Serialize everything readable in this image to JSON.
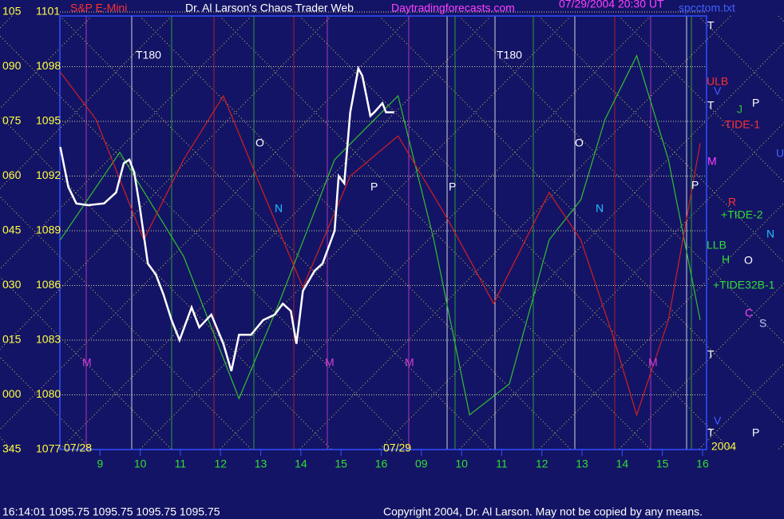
{
  "chart_data": {
    "type": "line",
    "header": [
      {
        "text": "S&P E-Mini",
        "color": "#ff3030"
      },
      {
        "text": "Dr. Al Larson's Chaos Trader Web",
        "color": "#ffffff"
      },
      {
        "text": "Daytradingforecasts.com",
        "color": "#ff40ff"
      },
      {
        "text": "07/29/2004 20:30 UT",
        "color": "#ff40ff"
      },
      {
        "text": "spcctom.txt",
        "color": "#4060ff"
      }
    ],
    "xlim": [
      8,
      24.1
    ],
    "xticks": [
      9,
      10,
      11,
      12,
      13,
      14,
      15,
      16,
      {
        "value": 17,
        "label": "09"
      },
      {
        "value": 18,
        "label": "10"
      },
      {
        "value": 19,
        "label": "11"
      },
      {
        "value": 20,
        "label": "12"
      },
      {
        "value": 21,
        "label": "13"
      },
      {
        "value": 22,
        "label": "14"
      },
      {
        "value": 23,
        "label": "15"
      },
      {
        "value": 24,
        "label": "16"
      }
    ],
    "dates": [
      "07/28",
      "07/29",
      "2004"
    ],
    "ylim": [
      1077,
      1101
    ],
    "yticks": [
      1101,
      1098,
      1095,
      1092,
      1089,
      1086,
      1083,
      1080,
      1077
    ],
    "y2lim": [
      -15,
      105
    ],
    "y2ticks": [
      105,
      {
        "value": 90,
        "label": "090"
      },
      {
        "value": 75,
        "label": "075"
      },
      {
        "value": 60,
        "label": "060"
      },
      {
        "value": 45,
        "label": "045"
      },
      {
        "value": 30,
        "label": "030"
      },
      {
        "value": 15,
        "label": "015"
      },
      {
        "value": 0,
        "label": "000"
      },
      {
        "value": -15,
        "label": "345"
      }
    ],
    "grid": true,
    "series": [
      {
        "name": "+TIDE-2",
        "color": "#30c030",
        "x": [
          8.01,
          9.49,
          11.08,
          12.46,
          13.45,
          14.84,
          16.42,
          17.31,
          18.2,
          19.19,
          20.18,
          20.97,
          21.57,
          22.36,
          23.15,
          23.94
        ],
        "values": [
          1088.5,
          1093.3,
          1087.6,
          1079.8,
          1085.0,
          1092.9,
          1096.4,
          1088.5,
          1078.9,
          1080.6,
          1088.5,
          1090.7,
          1095.1,
          1098.6,
          1092.9,
          1084.1
        ]
      },
      {
        "name": "-TIDE-1",
        "color": "#d02020",
        "x": [
          8.01,
          8.9,
          10.09,
          11.08,
          12.07,
          13.06,
          14.05,
          15.23,
          16.42,
          17.61,
          18.8,
          20.18,
          20.97,
          21.76,
          22.36,
          23.15,
          23.94
        ],
        "values": [
          1097.7,
          1095.1,
          1088.5,
          1092.9,
          1096.4,
          1091.1,
          1085.9,
          1092.0,
          1094.2,
          1089.8,
          1085.0,
          1091.1,
          1088.5,
          1083.3,
          1078.9,
          1084.1,
          1093.8
        ]
      },
      {
        "name": "price",
        "color": "#ffffff",
        "x": [
          8.01,
          8.21,
          8.41,
          8.7,
          9.1,
          9.4,
          9.59,
          9.73,
          9.85,
          9.99,
          10.19,
          10.39,
          10.58,
          10.78,
          10.98,
          11.28,
          11.47,
          11.77,
          12.07,
          12.27,
          12.46,
          12.76,
          13.06,
          13.35,
          13.55,
          13.75,
          13.89,
          14.05,
          14.34,
          14.54,
          14.84,
          14.94,
          15.08,
          15.23,
          15.43,
          15.53,
          15.63,
          15.73,
          15.83,
          16.03,
          16.12,
          16.32
        ],
        "values": [
          1093.6,
          1091.4,
          1090.5,
          1090.4,
          1090.5,
          1091.1,
          1092.7,
          1092.9,
          1092.2,
          1090.3,
          1087.2,
          1086.6,
          1085.5,
          1084.1,
          1083.0,
          1084.8,
          1083.7,
          1084.4,
          1082.8,
          1081.3,
          1083.3,
          1083.3,
          1084.1,
          1084.4,
          1085.0,
          1084.6,
          1082.8,
          1085.7,
          1086.8,
          1087.2,
          1089.0,
          1092.0,
          1091.6,
          1095.5,
          1097.9,
          1097.5,
          1096.4,
          1095.3,
          1095.5,
          1096.0,
          1095.5,
          1095.5
        ]
      }
    ],
    "annotations": [
      {
        "text": "T180",
        "color": "#ffffff"
      },
      {
        "text": "T180",
        "color": "#ffffff"
      },
      {
        "text": "O",
        "color": "#ffffff"
      },
      {
        "text": "O",
        "color": "#ffffff"
      },
      {
        "text": "N",
        "color": "#20c0ff"
      },
      {
        "text": "N",
        "color": "#20c0ff"
      },
      {
        "text": "P",
        "color": "#ffffff"
      },
      {
        "text": "P",
        "color": "#ffffff"
      },
      {
        "text": "M",
        "color": "#d040d0"
      },
      {
        "text": "M",
        "color": "#d040d0"
      },
      {
        "text": "M",
        "color": "#d040d0"
      },
      {
        "text": "M",
        "color": "#d040d0"
      },
      {
        "text": "T",
        "color": "#ffffff"
      },
      {
        "text": "V",
        "color": "#4060ff"
      },
      {
        "text": "T",
        "color": "#ffffff"
      },
      {
        "text": "J",
        "color": "#30c030"
      },
      {
        "text": "P",
        "color": "#ffffff"
      },
      {
        "text": "ULB",
        "color": "#ff3030"
      },
      {
        "text": "-TIDE-1",
        "color": "#ff3030"
      },
      {
        "text": "U",
        "color": "#4060ff"
      },
      {
        "text": "M",
        "color": "#ff40ff"
      },
      {
        "text": "P",
        "color": "#ffffff"
      },
      {
        "text": "R",
        "color": "#ff3030"
      },
      {
        "text": "+TIDE-2",
        "color": "#30e030"
      },
      {
        "text": "N",
        "color": "#20c0ff"
      },
      {
        "text": "LLB",
        "color": "#30e030"
      },
      {
        "text": "H",
        "color": "#30e030"
      },
      {
        "text": "O",
        "color": "#ffffff"
      },
      {
        "text": "+TIDE32B-1",
        "color": "#30e030"
      },
      {
        "text": "C",
        "color": "#ff40ff"
      },
      {
        "text": "S",
        "color": "#c0c0ff"
      },
      {
        "text": "T",
        "color": "#ffffff"
      },
      {
        "text": "V",
        "color": "#4060ff"
      },
      {
        "text": "T",
        "color": "#ffffff"
      },
      {
        "text": "P",
        "color": "#ffffff"
      }
    ],
    "status": "16:14:01  1095.75 1095.75 1095.75 1095.75",
    "copyright": "Copyright 2004, Dr. Al Larson. May not be copied by any means."
  }
}
